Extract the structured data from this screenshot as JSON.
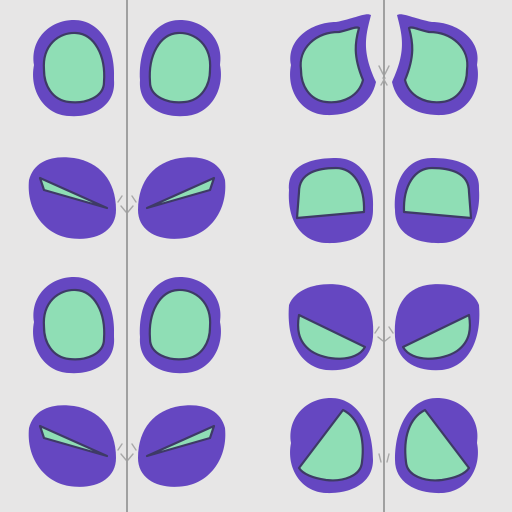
{
  "sheet": {
    "kind": "eye-expression-sprite-sheet",
    "grid": {
      "rows": 4,
      "columns": 2
    },
    "colors": {
      "background": "#e7e6e6",
      "divider": "#8e8e8e",
      "eye_outline": "#6547c1",
      "eye_fill": "#8fdeb5",
      "eye_fill_stroke": "#3e3a66",
      "crease": "#a8a8a8"
    },
    "expressions": [
      {
        "row": 0,
        "column": 0,
        "name": "open-round"
      },
      {
        "row": 0,
        "column": 1,
        "name": "open-notched-top"
      },
      {
        "row": 1,
        "column": 0,
        "name": "squint-slit"
      },
      {
        "row": 1,
        "column": 1,
        "name": "half-closed-lid"
      },
      {
        "row": 2,
        "column": 0,
        "name": "open-round"
      },
      {
        "row": 2,
        "column": 1,
        "name": "angry-slanted"
      },
      {
        "row": 3,
        "column": 0,
        "name": "squint-slit"
      },
      {
        "row": 3,
        "column": 1,
        "name": "open-diagonal-cut"
      }
    ]
  }
}
